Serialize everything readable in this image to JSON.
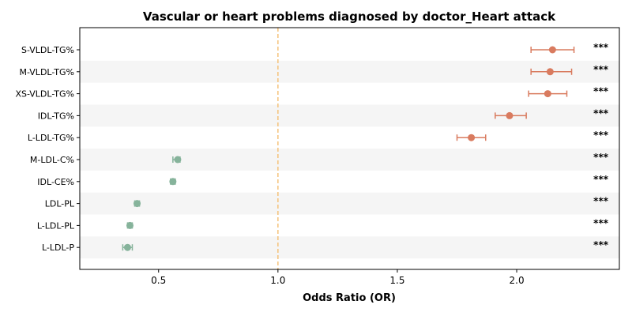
{
  "chart_data": {
    "type": "scatter",
    "subtype": "forest-plot",
    "title": "Vascular or heart problems diagnosed by doctor_Heart attack",
    "xlabel": "Odds Ratio (OR)",
    "ylabel": "",
    "xlim": [
      0.17,
      2.43
    ],
    "xticks": [
      0.5,
      1.0,
      1.5,
      2.0
    ],
    "xtick_labels": [
      "0.5",
      "1.0",
      "1.5",
      "2.0"
    ],
    "reference_line": 1.0,
    "reference_line_color": "#f5c27a",
    "grid": false,
    "row_band_color": "#f5f5f5",
    "colors": {
      "above": "#d97b5f",
      "below": "#86b39b"
    },
    "categories": [
      "S-VLDL-TG%",
      "M-VLDL-TG%",
      "XS-VLDL-TG%",
      "IDL-TG%",
      "L-LDL-TG%",
      "M-LDL-C%",
      "IDL-CE%",
      "LDL-PL",
      "L-LDL-PL",
      "L-LDL-P"
    ],
    "or": [
      2.15,
      2.14,
      2.13,
      1.97,
      1.81,
      0.58,
      0.56,
      0.41,
      0.38,
      0.37
    ],
    "ci_low": [
      2.06,
      2.06,
      2.05,
      1.91,
      1.75,
      0.56,
      0.55,
      0.4,
      0.37,
      0.35
    ],
    "ci_high": [
      2.24,
      2.23,
      2.21,
      2.04,
      1.87,
      0.59,
      0.57,
      0.42,
      0.39,
      0.39
    ],
    "significance": [
      "***",
      "***",
      "***",
      "***",
      "***",
      "***",
      "***",
      "***",
      "***",
      "***"
    ]
  }
}
